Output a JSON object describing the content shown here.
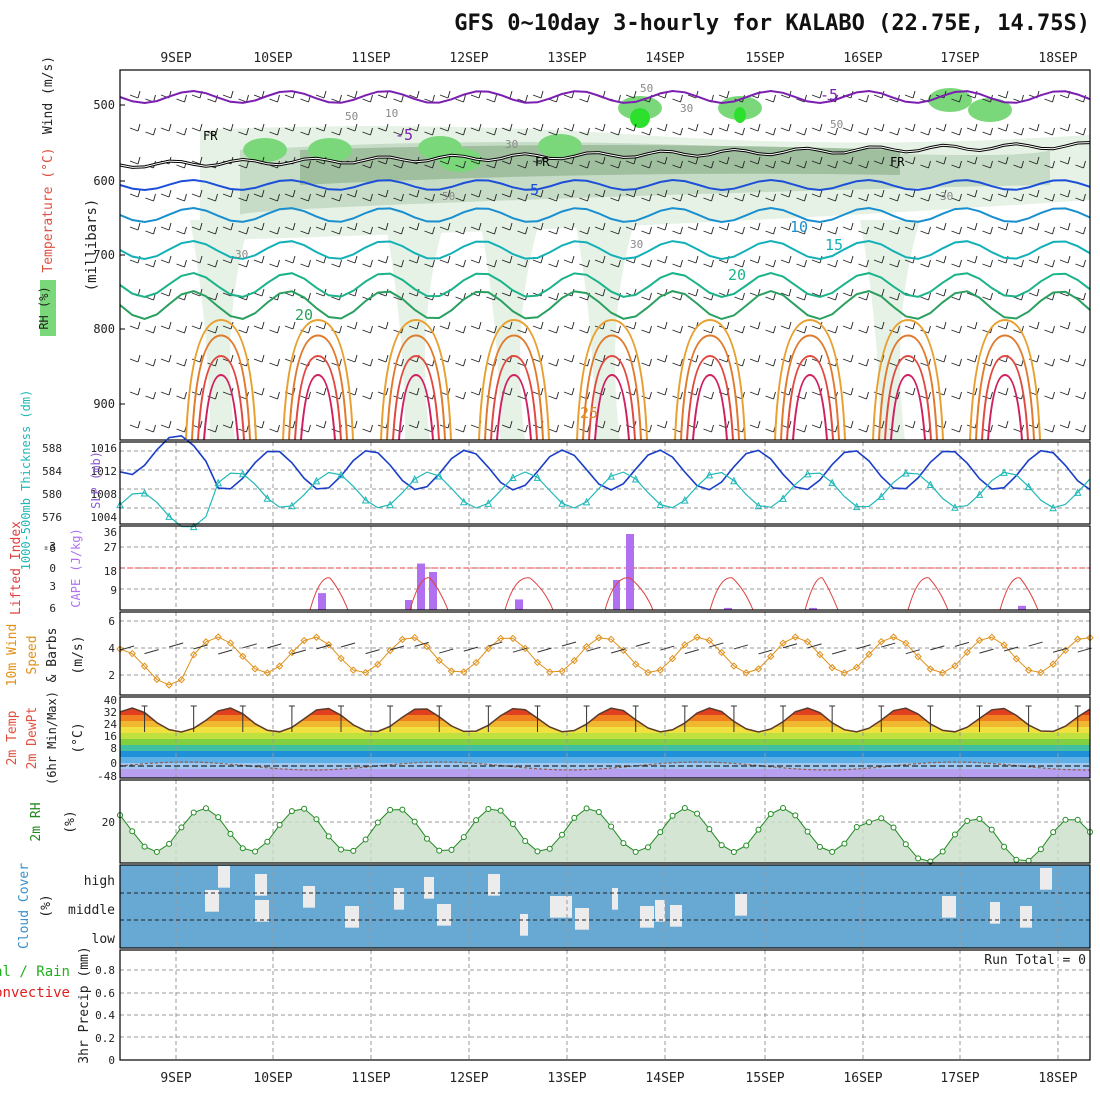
{
  "title": "GFS 0~10day 3-hourly for KALABO (22.75E, 14.75S)",
  "date_labels": [
    "9SEP",
    "10SEP",
    "11SEP",
    "12SEP",
    "13SEP",
    "14SEP",
    "15SEP",
    "16SEP",
    "17SEP",
    "18SEP"
  ],
  "panels": {
    "upper": {
      "ylabel_main": "(millibars)",
      "ylabel_wind": "Wind (m/s)",
      "ylabel_temp": "Temperature (°C)",
      "ylabel_rh": "RH (%)",
      "yticks": [
        "500",
        "600",
        "700",
        "800",
        "900"
      ],
      "contour_labels": {
        "temperature": [
          "-5",
          "-5",
          "5",
          "10",
          "15",
          "20",
          "20",
          "25"
        ],
        "rh": [
          "10",
          "50",
          "50",
          "50",
          "30",
          "30",
          "30",
          "30",
          "50",
          "30"
        ],
        "freezing": [
          "FR",
          "FR",
          "FR"
        ]
      }
    },
    "slp": {
      "ylabel_thick": "1000-500mb Thickness (dm)",
      "ylabel_slp": "SLP (mb)",
      "yticks_thick": [
        "576",
        "580",
        "584",
        "588"
      ],
      "yticks_slp": [
        "1004",
        "1008",
        "1012",
        "1016"
      ]
    },
    "cape": {
      "ylabel_li": "Lifted Index",
      "ylabel_cape": "CAPE (J/kg)",
      "yticks_li": [
        "6",
        "3",
        "0",
        "-3",
        "-6"
      ],
      "yticks_cape": [
        "9",
        "18",
        "27",
        "36"
      ]
    },
    "wind10": {
      "ylabel_1": "10m Wind",
      "ylabel_2": "Speed",
      "ylabel_3": "& Barbs",
      "ylabel_unit": "(m/s)",
      "yticks": [
        "2",
        "4",
        "6"
      ]
    },
    "temp2m": {
      "ylabel_1": "2m Temp",
      "ylabel_2": "2m DewPt",
      "ylabel_3": "(6hr Min/Max)",
      "ylabel_unit": "(°C)",
      "yticks": [
        "-48",
        "0",
        "8",
        "16",
        "24",
        "32",
        "40"
      ]
    },
    "rh2m": {
      "ylabel": "2m RH",
      "ylabel_unit": "(%)",
      "yticks": [
        "20"
      ]
    },
    "cloud": {
      "ylabel": "Cloud Cover",
      "ylabel_unit": "(%)",
      "levels": [
        "high",
        "middle",
        "low"
      ]
    },
    "precip": {
      "ylabel_main": "3hr Precip (mm)",
      "ylabel_total": "Total / Rain",
      "ylabel_conv": "Convective",
      "run_total": "Run Total = 0",
      "yticks": [
        "0",
        "0.2",
        "0.4",
        "0.6",
        "0.8"
      ]
    }
  },
  "colors": {
    "rh_fill": [
      "#e6f2e6",
      "#c6dcc6",
      "#9fbf9f",
      "#7ad87a",
      "#2ee02e"
    ],
    "slp": "#1a3ec8",
    "thickness": "#20b8b8",
    "cape_bar": "#b070f0",
    "lifted_index": "#e04040",
    "wind_speed": "#e0901a",
    "rh2m": "#208a20",
    "cloud_bg": "#68a9d3",
    "cloud_bar": "#ececec"
  },
  "chart_data": [
    {
      "type": "line",
      "panel": "SLP and 1000-500mb thickness",
      "x": [
        "9SEP",
        "10SEP",
        "11SEP",
        "12SEP",
        "13SEP",
        "14SEP",
        "15SEP",
        "16SEP",
        "17SEP",
        "18SEP"
      ],
      "series": [
        {
          "name": "SLP (mb)",
          "values": [
            1013,
            1009,
            1010,
            1009,
            1007,
            1006,
            1006,
            1008,
            1008,
            1011
          ]
        },
        {
          "name": "1000-500mb Thickness (dm)",
          "values": [
            578,
            581,
            582,
            583,
            583,
            584,
            585,
            584,
            584,
            583
          ]
        }
      ]
    },
    {
      "type": "bar",
      "panel": "CAPE",
      "categories": [
        "10SEP",
        "11SEP",
        "12SEP",
        "13SEP",
        "14SEP",
        "15SEP",
        "16SEP",
        "17SEP"
      ],
      "values": [
        8,
        22,
        18,
        5,
        36,
        1,
        1,
        2
      ],
      "ylabel": "CAPE (J/kg)",
      "ylim": [
        0,
        36
      ]
    },
    {
      "type": "line",
      "panel": "10m Wind Speed",
      "x": [
        "9SEP",
        "10SEP",
        "11SEP",
        "12SEP",
        "13SEP",
        "14SEP",
        "15SEP",
        "16SEP",
        "17SEP",
        "18SEP"
      ],
      "values": [
        2.8,
        3.8,
        3.7,
        4.0,
        3.0,
        1.0,
        2.5,
        3.5,
        3.0,
        3.6
      ],
      "ylabel": "(m/s)",
      "ylim": [
        0,
        6.5
      ]
    },
    {
      "type": "line",
      "panel": "2m Temp",
      "x": [
        "9SEP",
        "10SEP",
        "11SEP",
        "12SEP",
        "13SEP",
        "14SEP",
        "15SEP",
        "16SEP",
        "17SEP",
        "18SEP"
      ],
      "series": [
        {
          "name": "2m Temp max",
          "values": [
            34,
            36,
            36,
            35,
            36,
            36,
            36,
            36,
            36,
            35
          ]
        },
        {
          "name": "2m Temp min",
          "values": [
            18,
            19,
            19,
            19,
            19,
            19,
            19,
            19,
            19,
            19
          ]
        }
      ],
      "ylabel": "(°C)"
    },
    {
      "type": "line",
      "panel": "2m RH",
      "x": [
        "9SEP",
        "10SEP",
        "11SEP",
        "12SEP",
        "13SEP",
        "14SEP",
        "15SEP",
        "16SEP",
        "17SEP",
        "18SEP"
      ],
      "values": [
        28,
        30,
        33,
        31,
        28,
        27,
        25,
        26,
        18,
        18
      ],
      "ylabel": "(%)"
    },
    {
      "type": "bar",
      "panel": "3hr Precip",
      "categories": [
        "9SEP",
        "10SEP",
        "11SEP",
        "12SEP",
        "13SEP",
        "14SEP",
        "15SEP",
        "16SEP",
        "17SEP",
        "18SEP"
      ],
      "values": [
        0,
        0,
        0,
        0,
        0,
        0,
        0,
        0,
        0,
        0
      ],
      "ylabel": "3hr Precip (mm)",
      "ylim": [
        0,
        0.9
      ]
    }
  ]
}
